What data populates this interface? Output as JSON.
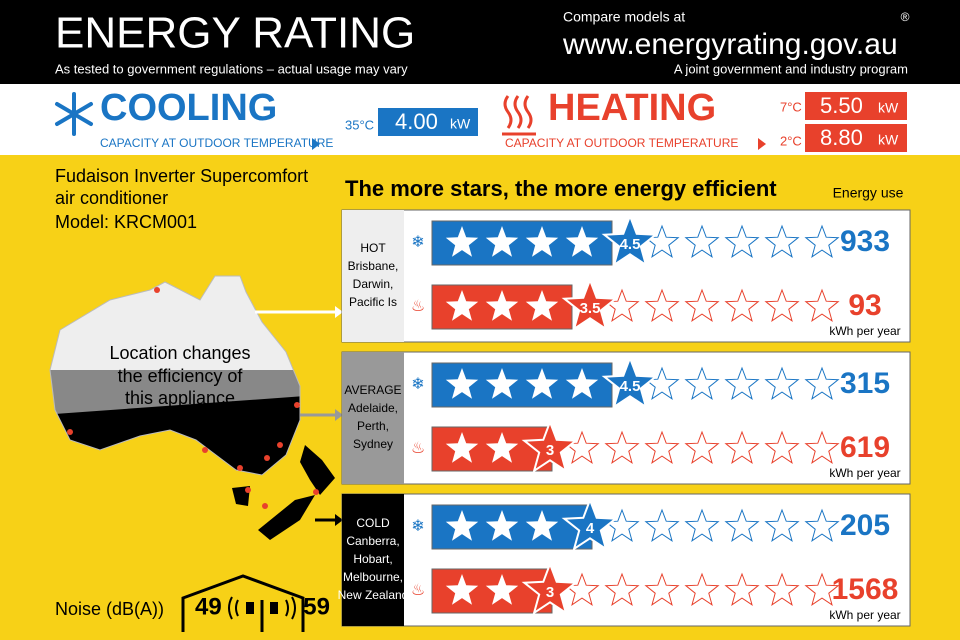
{
  "header": {
    "title": "ENERGY RATING",
    "subtitle": "As tested to government regulations – actual usage may vary",
    "compare": "Compare models at",
    "url": "www.energyrating.gov.au",
    "program": "A joint government and industry program",
    "mark": "®"
  },
  "capacity": {
    "cooling": {
      "label": "COOLING",
      "note": "CAPACITY AT OUTDOOR TEMPERATURE",
      "temps": [
        "35°C"
      ],
      "values": [
        "4.00"
      ],
      "unit": "kW"
    },
    "heating": {
      "label": "HEATING",
      "note": "CAPACITY AT OUTDOOR TEMPERATURE",
      "temps": [
        "7°C",
        "2°C"
      ],
      "values": [
        "5.50",
        "8.80"
      ],
      "unit": "kW"
    }
  },
  "product": {
    "lines": [
      "Fudaison Inverter Supercomfort",
      "air conditioner",
      "Model: KRCM001"
    ]
  },
  "map_note": [
    "Location changes",
    "the efficiency of",
    "this appliance"
  ],
  "headline": "The more stars, the more energy efficient",
  "energy_use_label": "Energy use",
  "energy_unit": "kWh per year",
  "zones": [
    {
      "label": [
        "HOT",
        "Brisbane,",
        "Darwin,",
        "Pacific Is"
      ],
      "cooling": {
        "stars": 4.5,
        "energy": 933
      },
      "heating": {
        "stars": 3.5,
        "energy": 93
      }
    },
    {
      "label": [
        "AVERAGE",
        "Adelaide,",
        "Perth,",
        "Sydney"
      ],
      "cooling": {
        "stars": 4.5,
        "energy": 315
      },
      "heating": {
        "stars": 3,
        "energy": 619
      }
    },
    {
      "label": [
        "COLD",
        "Canberra,",
        "Hobart,",
        "Melbourne,",
        "New Zealand"
      ],
      "cooling": {
        "stars": 4,
        "energy": 205
      },
      "heating": {
        "stars": 3,
        "energy": 1568
      }
    }
  ],
  "noise": {
    "label": "Noise (dB(A))",
    "indoor": 49,
    "outdoor": 59
  }
}
